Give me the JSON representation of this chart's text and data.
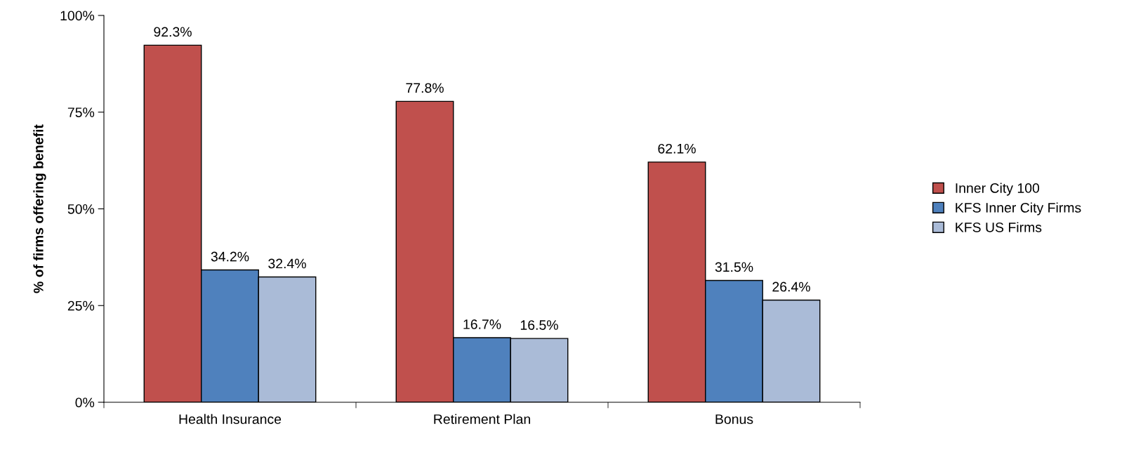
{
  "chart_data": {
    "type": "bar",
    "ylabel": "% of firms offering benefit",
    "categories": [
      "Health Insurance",
      "Retirement Plan",
      "Bonus"
    ],
    "series": [
      {
        "name": "Inner City 100",
        "color": "#c0504d",
        "values": [
          92.3,
          77.8,
          62.1
        ],
        "value_labels": [
          "92.3%",
          "77.8%",
          "62.1%"
        ]
      },
      {
        "name": "KFS Inner City Firms",
        "color": "#4f81bd",
        "values": [
          34.2,
          16.7,
          31.5
        ],
        "value_labels": [
          "34.2%",
          "16.7%",
          "31.5%"
        ]
      },
      {
        "name": "KFS US Firms",
        "color": "#aabbd7",
        "values": [
          32.4,
          16.5,
          26.4
        ],
        "value_labels": [
          "32.4%",
          "16.5%",
          "26.4%"
        ]
      }
    ],
    "ylim": [
      0,
      100
    ],
    "yticks": [
      {
        "value": 0,
        "label": "0%"
      },
      {
        "value": 25,
        "label": "25%"
      },
      {
        "value": 50,
        "label": "50%"
      },
      {
        "value": 75,
        "label": "75%"
      },
      {
        "value": 100,
        "label": "100%"
      }
    ],
    "grid": false,
    "legend": "right"
  }
}
